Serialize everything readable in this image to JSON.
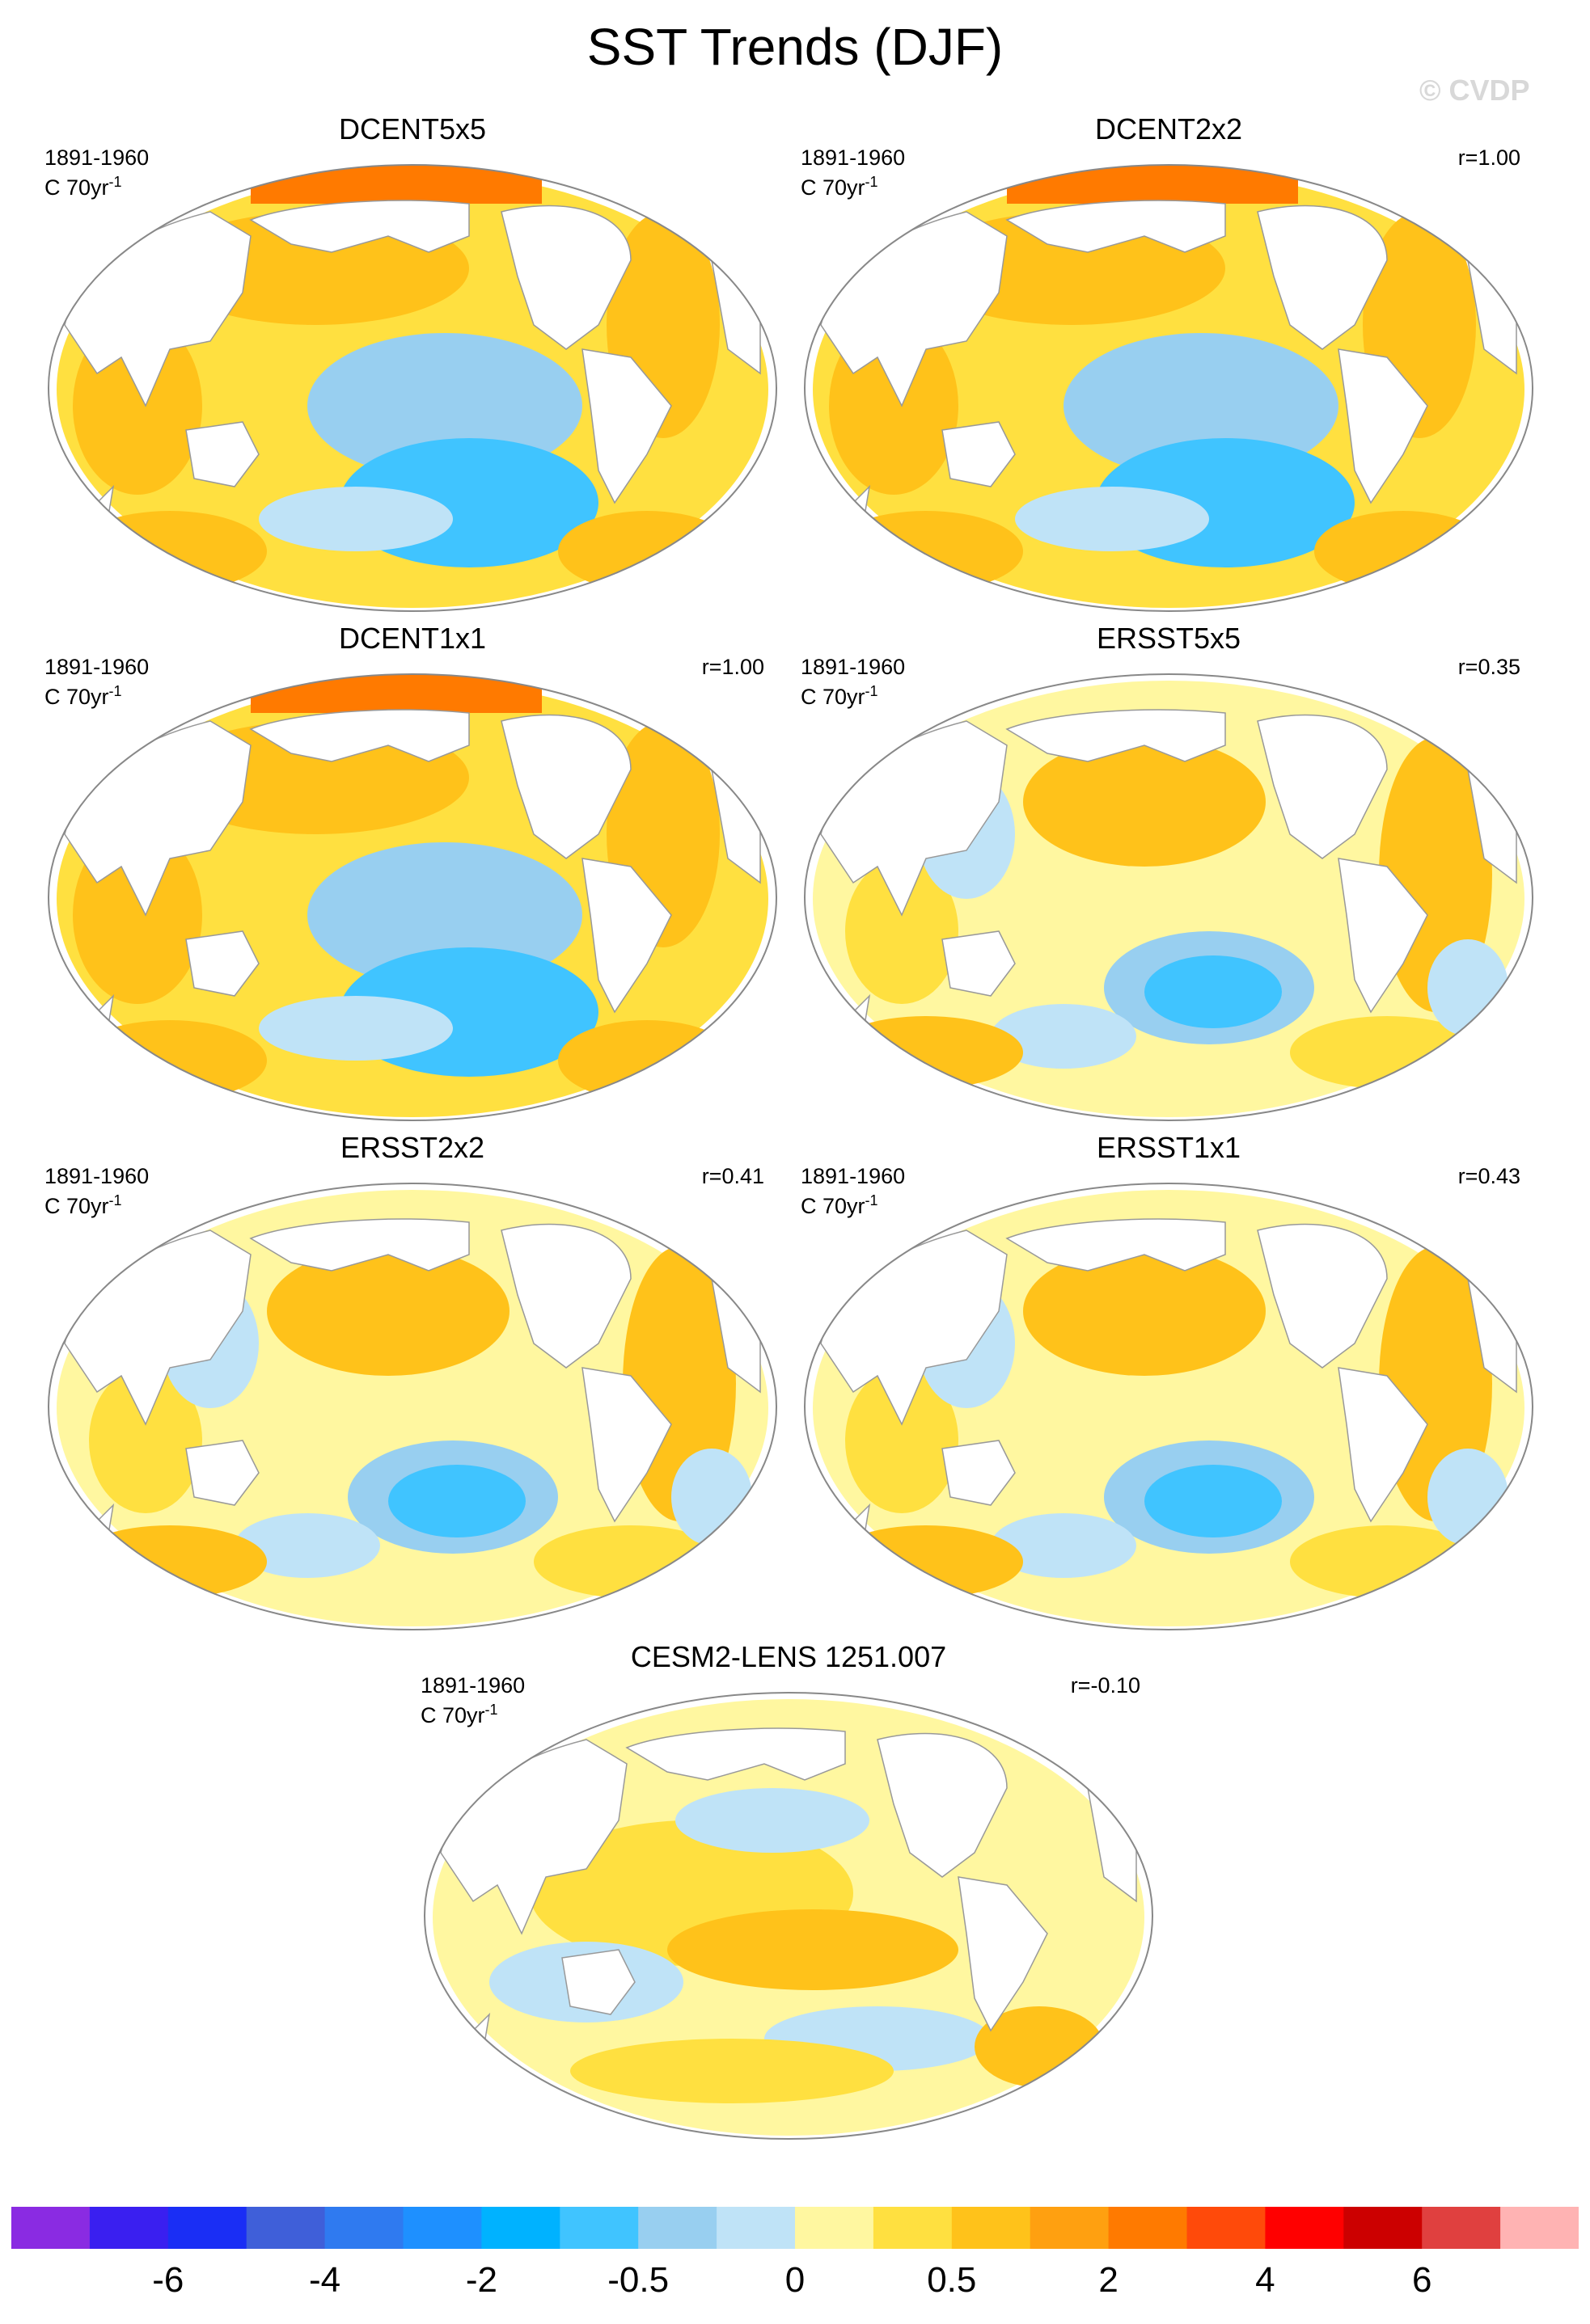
{
  "figure": {
    "title": "SST Trends (DJF)",
    "watermark": "© CVDP"
  },
  "chart_data": {
    "type": "heatmap",
    "projection": "Robinson (global, Pacific-centered)",
    "variable": "SST trend, DJF",
    "colorbar": {
      "labels": [
        "-6",
        "-4",
        "-2",
        "-0.5",
        "0",
        "0.5",
        "2",
        "4",
        "6"
      ],
      "colors": [
        "#8a2be2",
        "#3a1ff0",
        "#1a2ef5",
        "#3f5fd9",
        "#2f7af0",
        "#1e90ff",
        "#00b2ff",
        "#40c4ff",
        "#98cff0",
        "#bfe3f7",
        "#fff7a0",
        "#ffe040",
        "#ffc21a",
        "#ffa010",
        "#ff7a00",
        "#ff4a0a",
        "#ff0000",
        "#cc0000",
        "#e0403f",
        "#ffb3b3"
      ]
    },
    "panels": [
      {
        "title": "DCENT5x5",
        "period": "1891-1960",
        "units": "C 70yr",
        "units_exp": "-1",
        "r": ""
      },
      {
        "title": "DCENT2x2",
        "period": "1891-1960",
        "units": "C 70yr",
        "units_exp": "-1",
        "r": "r=1.00"
      },
      {
        "title": "DCENT1x1",
        "period": "1891-1960",
        "units": "C 70yr",
        "units_exp": "-1",
        "r": "r=1.00"
      },
      {
        "title": "ERSST5x5",
        "period": "1891-1960",
        "units": "C 70yr",
        "units_exp": "-1",
        "r": "r=0.35"
      },
      {
        "title": "ERSST2x2",
        "period": "1891-1960",
        "units": "C 70yr",
        "units_exp": "-1",
        "r": "r=0.41"
      },
      {
        "title": "ERSST1x1",
        "period": "1891-1960",
        "units": "C 70yr",
        "units_exp": "-1",
        "r": "r=0.43"
      },
      {
        "title": "CESM2-LENS 1251.007",
        "period": "1891-1960",
        "units": "C 70yr",
        "units_exp": "-1",
        "r": "r=-0.10"
      }
    ]
  }
}
